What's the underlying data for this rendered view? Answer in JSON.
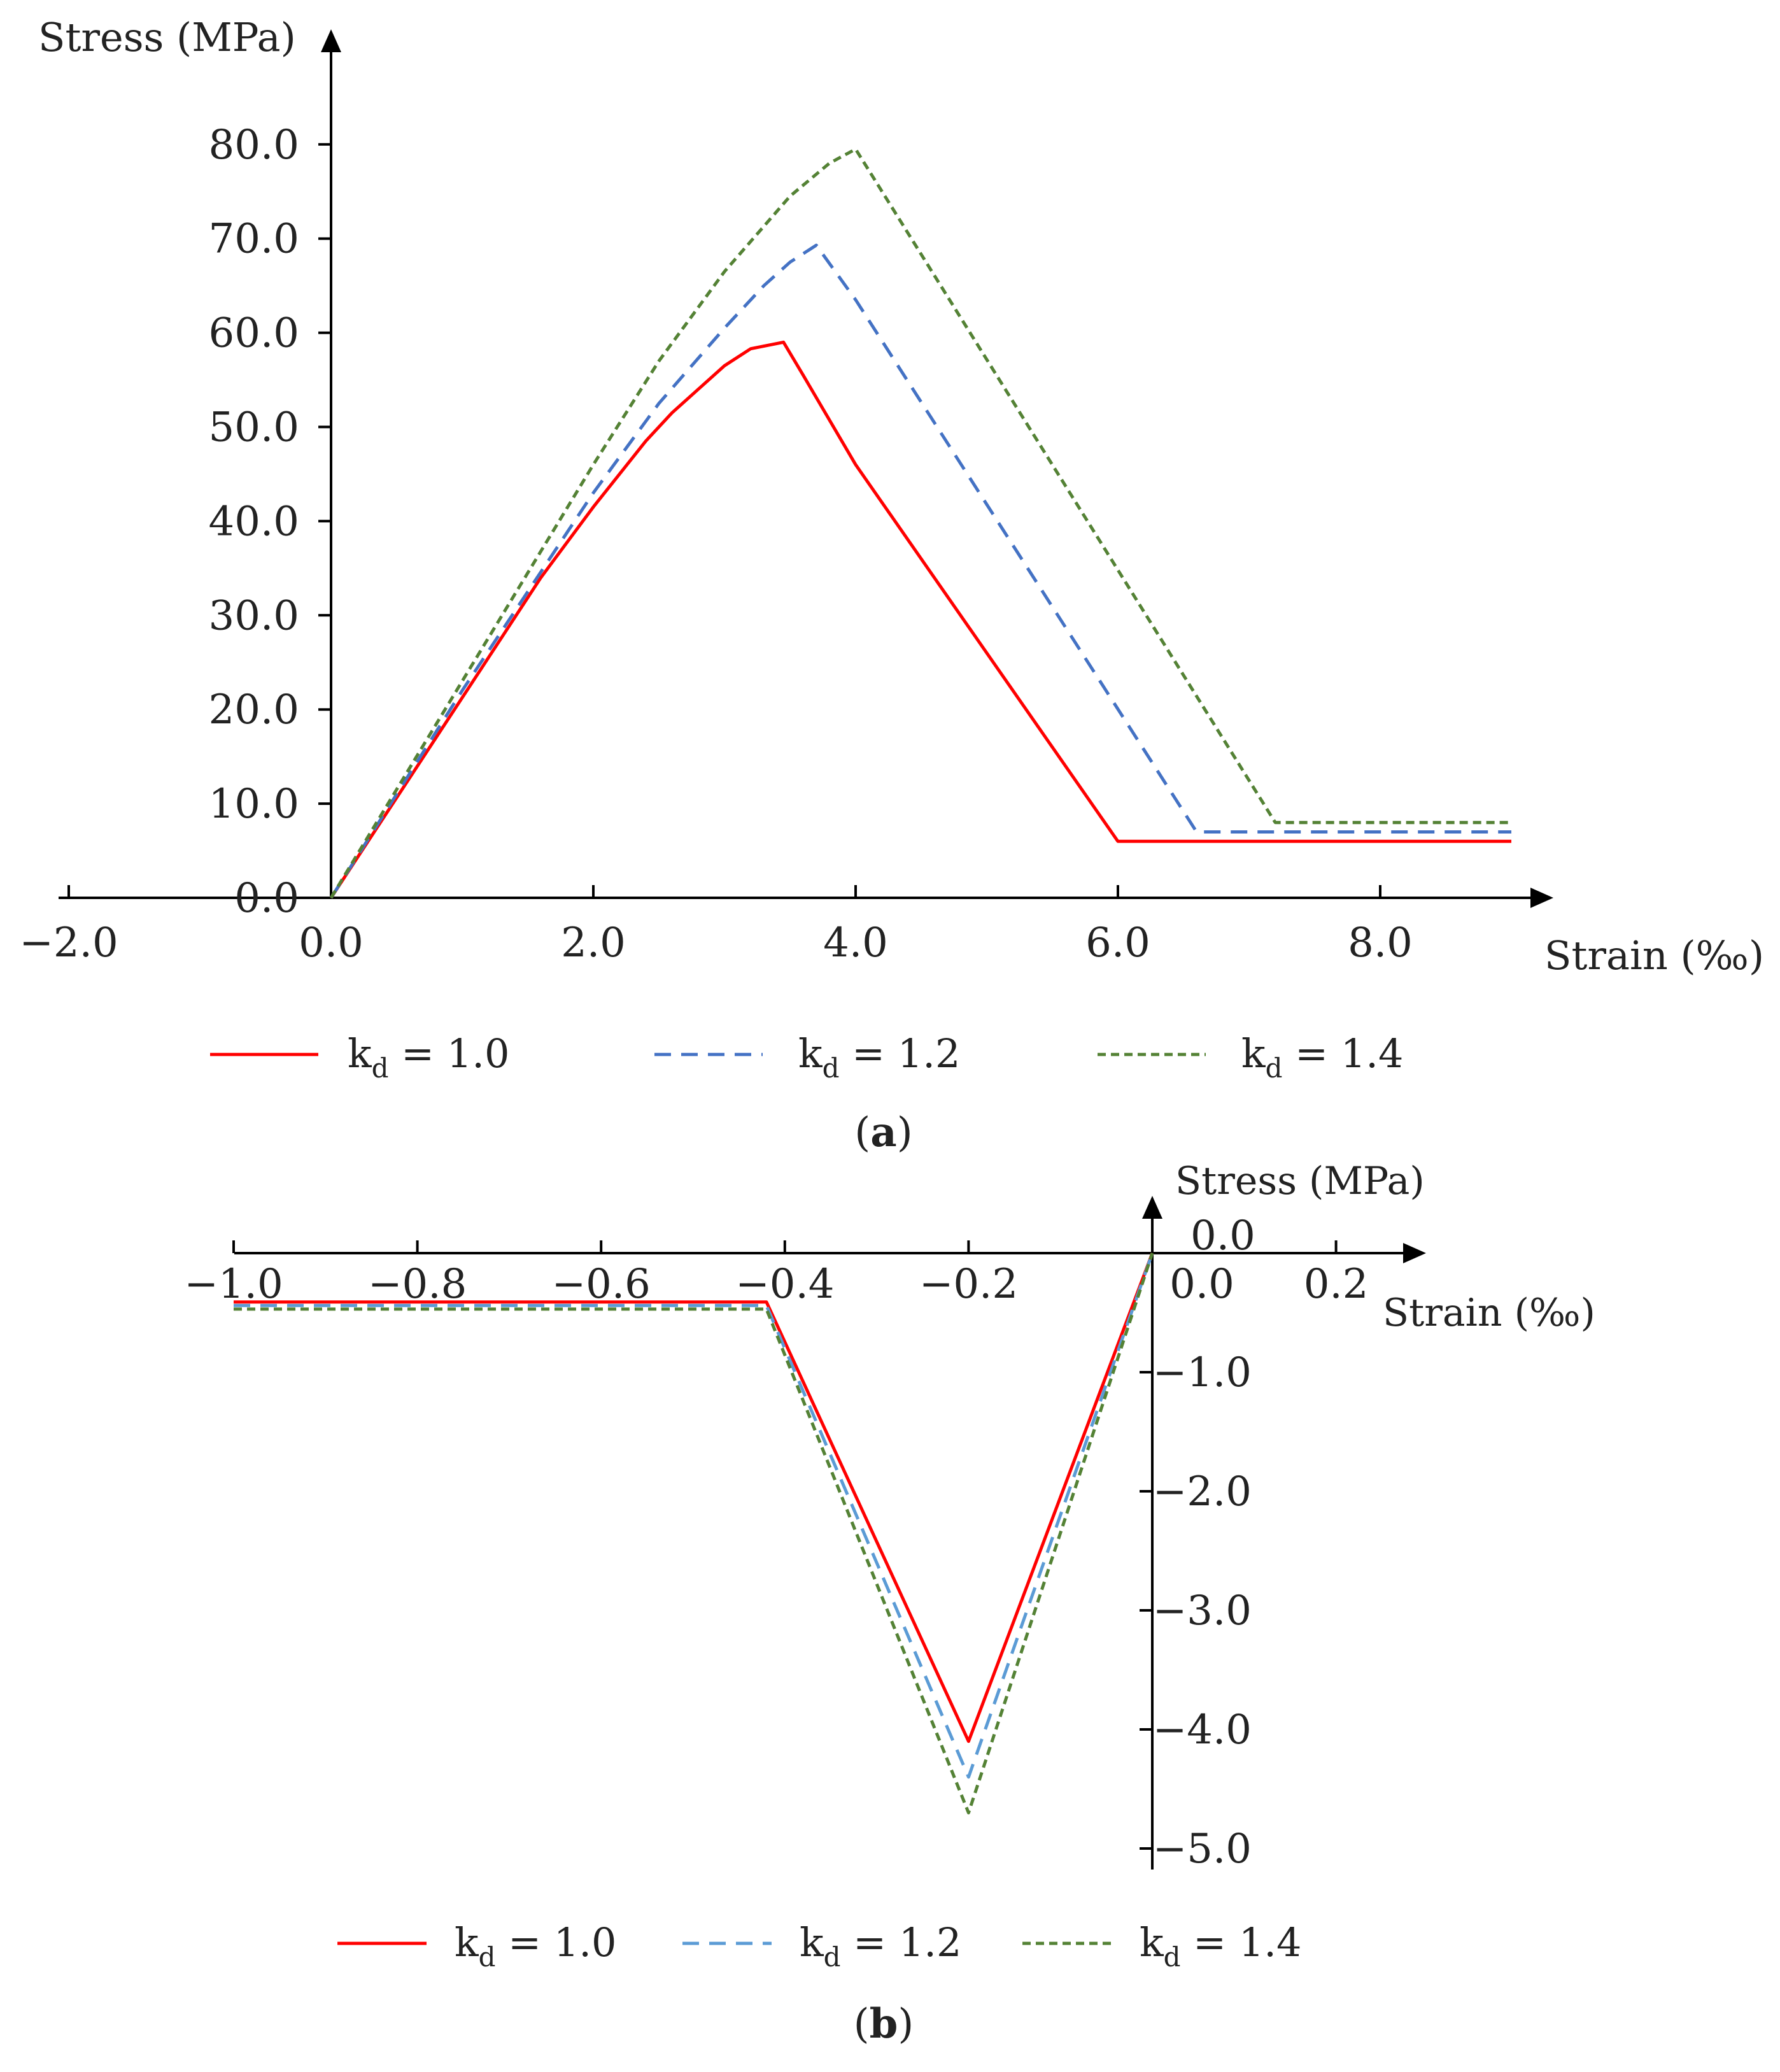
{
  "chart_data": [
    {
      "type": "line",
      "panel_label": "a",
      "xlabel": "Strain (‰)",
      "ylabel": "Stress (MPa)",
      "xlim": [
        -2.0,
        9.0
      ],
      "ylim": [
        0.0,
        80.0
      ],
      "x_ticks": [
        -2.0,
        0.0,
        2.0,
        4.0,
        6.0,
        8.0
      ],
      "x_tick_labels": [
        "−2.0",
        "0.0",
        "2.0",
        "4.0",
        "6.0",
        "8.0"
      ],
      "y_ticks": [
        0.0,
        10.0,
        20.0,
        30.0,
        40.0,
        50.0,
        60.0,
        70.0,
        80.0
      ],
      "y_tick_labels": [
        "0.0",
        "10.0",
        "20.0",
        "30.0",
        "40.0",
        "50.0",
        "60.0",
        "70.0",
        "80.0"
      ],
      "grid": false,
      "legend_position": "bottom",
      "series": [
        {
          "name_main": "k",
          "name_sub": "d",
          "name_rest": " = 1.0",
          "color": "#ff0000",
          "dash": "solid",
          "x": [
            0,
            0.4,
            0.8,
            1.2,
            1.6,
            2.0,
            2.4,
            2.6,
            2.8,
            3.0,
            3.2,
            3.45,
            3.6,
            4.0,
            6.0,
            9.0
          ],
          "y": [
            0,
            8.5,
            17.0,
            25.5,
            34.0,
            41.5,
            48.5,
            51.5,
            54.0,
            56.5,
            58.3,
            59.0,
            55.5,
            46.0,
            6.0,
            6.0
          ]
        },
        {
          "name_main": "k",
          "name_sub": "d",
          "name_rest": " = 1.2",
          "color": "#4472c4",
          "dash": "long",
          "x": [
            0,
            0.5,
            1.0,
            1.5,
            2.0,
            2.5,
            3.0,
            3.3,
            3.5,
            3.7,
            4.0,
            6.6,
            9.0
          ],
          "y": [
            0,
            11.0,
            22.0,
            32.5,
            43.0,
            52.5,
            60.5,
            65.0,
            67.5,
            69.3,
            63.5,
            7.0,
            7.0
          ]
        },
        {
          "name_main": "k",
          "name_sub": "d",
          "name_rest": " = 1.4",
          "color": "#548235",
          "dash": "short",
          "x": [
            0,
            0.5,
            1.0,
            1.5,
            2.0,
            2.5,
            3.0,
            3.5,
            3.8,
            4.0,
            7.2,
            9.0
          ],
          "y": [
            0,
            11.5,
            23.0,
            34.5,
            46.0,
            57.0,
            66.5,
            74.5,
            78.0,
            79.5,
            8.0,
            8.0
          ]
        }
      ]
    },
    {
      "type": "line",
      "panel_label": "b",
      "xlabel": "Strain (‰)",
      "ylabel": "Stress (MPa)",
      "xlim": [
        -1.0,
        0.3
      ],
      "ylim": [
        -5.0,
        0.0
      ],
      "x_ticks": [
        -1.0,
        -0.8,
        -0.6,
        -0.4,
        -0.2,
        0.2
      ],
      "x_tick_labels": [
        "−1.0",
        "−0.8",
        "−0.6",
        "−0.4",
        "−0.2",
        "0.2"
      ],
      "x_zero_label": "0.0",
      "y_ticks": [
        -1.0,
        -2.0,
        -3.0,
        -4.0,
        -5.0
      ],
      "y_tick_labels": [
        "−1.0",
        "−2.0",
        "−3.0",
        "−4.0",
        "−5.0"
      ],
      "y_zero_label": "0.0",
      "grid": false,
      "legend_position": "bottom",
      "series": [
        {
          "name_main": "k",
          "name_sub": "d",
          "name_rest": " = 1.0",
          "color": "#ff0000",
          "dash": "solid",
          "x": [
            -1.0,
            -0.42,
            -0.2,
            0.0
          ],
          "y": [
            -0.41,
            -0.41,
            -4.1,
            0.0
          ]
        },
        {
          "name_main": "k",
          "name_sub": "d",
          "name_rest": " = 1.2",
          "color": "#5b9bd5",
          "dash": "long",
          "x": [
            -1.0,
            -0.42,
            -0.2,
            0.0
          ],
          "y": [
            -0.44,
            -0.44,
            -4.4,
            0.0
          ]
        },
        {
          "name_main": "k",
          "name_sub": "d",
          "name_rest": " = 1.4",
          "color": "#548235",
          "dash": "short",
          "x": [
            -1.0,
            -0.42,
            -0.2,
            0.0
          ],
          "y": [
            -0.47,
            -0.47,
            -4.7,
            0.0
          ]
        }
      ]
    }
  ]
}
